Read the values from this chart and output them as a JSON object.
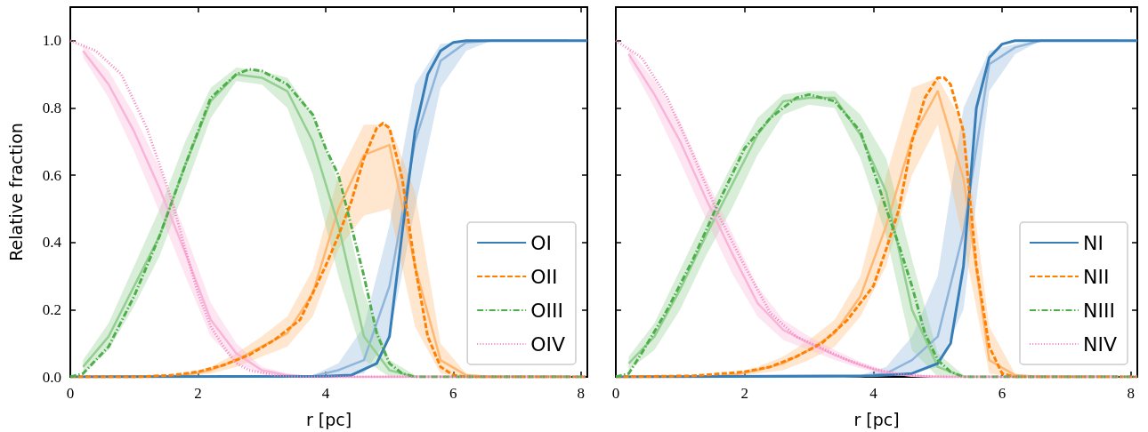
{
  "chart_data": [
    {
      "type": "line",
      "xlabel": "r [pc]",
      "ylabel": "Relative fraction",
      "xlim": [
        0,
        8.1
      ],
      "ylim": [
        0,
        1.1
      ],
      "xticks": [
        0,
        2,
        4,
        6,
        8
      ],
      "yticks": [
        {
          "value": 0,
          "label": "0.0"
        },
        {
          "value": 0.2,
          "label": "0.2"
        },
        {
          "value": 0.4,
          "label": "0.4"
        },
        {
          "value": 0.6,
          "label": "0.6"
        },
        {
          "value": 0.8,
          "label": "0.8"
        },
        {
          "value": 1,
          "label": "1.0"
        }
      ],
      "grid": false,
      "legend": "bottom right",
      "marker": "none",
      "series": [
        {
          "name": "OI",
          "color": "#377eb8",
          "line_style": "solid",
          "x": [
            0,
            4.0,
            4.4,
            4.8,
            5.0,
            5.2,
            5.4,
            5.6,
            5.8,
            6.0,
            6.2,
            8.1
          ],
          "values": [
            0,
            0.002,
            0.005,
            0.04,
            0.12,
            0.43,
            0.73,
            0.9,
            0.97,
            0.995,
            1.0,
            1.0
          ]
        },
        {
          "name": "OII",
          "color": "#ff7f00",
          "line_style": "dashed",
          "x": [
            0,
            1.0,
            1.6,
            2.0,
            2.4,
            2.8,
            3.2,
            3.6,
            4.0,
            4.2,
            4.4,
            4.6,
            4.8,
            4.9,
            5.0,
            5.2,
            5.4,
            5.6,
            5.8,
            6.0,
            6.2,
            8.1
          ],
          "values": [
            0,
            0,
            0.005,
            0.015,
            0.035,
            0.065,
            0.11,
            0.17,
            0.33,
            0.42,
            0.52,
            0.65,
            0.74,
            0.755,
            0.74,
            0.59,
            0.33,
            0.12,
            0.03,
            0.005,
            0,
            0
          ]
        },
        {
          "name": "OIII",
          "color": "#4daf4a",
          "line_style": "dashdot",
          "x": [
            0,
            0.2,
            0.6,
            1.0,
            1.4,
            1.8,
            2.2,
            2.6,
            2.8,
            3.0,
            3.4,
            3.8,
            4.0,
            4.2,
            4.4,
            4.6,
            4.8,
            5.0,
            5.2,
            5.4,
            8.1
          ],
          "values": [
            0,
            0.01,
            0.09,
            0.24,
            0.42,
            0.63,
            0.83,
            0.9,
            0.915,
            0.91,
            0.87,
            0.78,
            0.68,
            0.6,
            0.45,
            0.3,
            0.13,
            0.04,
            0.01,
            0,
            0
          ]
        },
        {
          "name": "OIV",
          "color": "#f781bf",
          "line_style": "dotted",
          "x": [
            0,
            0.4,
            0.8,
            1.2,
            1.6,
            1.8,
            2.0,
            2.2,
            2.4,
            2.6,
            2.8,
            3.2,
            3.6,
            8.1
          ],
          "values": [
            1.0,
            0.97,
            0.9,
            0.74,
            0.52,
            0.38,
            0.25,
            0.15,
            0.09,
            0.04,
            0.02,
            0.005,
            0,
            0
          ]
        },
        {
          "color": "#8fb5da",
          "line_style": "solid",
          "x": [
            0.2,
            0.6,
            1.0,
            1.4,
            1.8,
            2.2,
            2.6,
            3.0,
            3.4,
            3.8,
            4.2,
            4.6,
            5.0,
            5.4,
            5.8,
            6.2,
            6.6,
            7.0,
            7.4,
            7.8
          ],
          "values": [
            0,
            0,
            0,
            0,
            0,
            0,
            0,
            0,
            0,
            0.002,
            0.02,
            0.05,
            0.27,
            0.7,
            0.94,
            0.995,
            1,
            1,
            1,
            1
          ],
          "lower": [
            0,
            0,
            0,
            0,
            0,
            0,
            0,
            0,
            0,
            0,
            0.005,
            0.01,
            0.12,
            0.5,
            0.86,
            0.97,
            1,
            1,
            1,
            1
          ],
          "upper": [
            0,
            0,
            0,
            0,
            0,
            0,
            0,
            0,
            0,
            0.005,
            0.04,
            0.15,
            0.45,
            0.87,
            0.99,
            1,
            1,
            1,
            1,
            1
          ]
        },
        {
          "color": "#ffb872",
          "line_style": "solid",
          "x": [
            0.2,
            0.6,
            1.0,
            1.4,
            1.8,
            2.2,
            2.6,
            3.0,
            3.4,
            3.8,
            4.2,
            4.6,
            5.0,
            5.4,
            5.8,
            6.2,
            6.6,
            7.0,
            7.4,
            7.8
          ],
          "values": [
            0,
            0,
            0,
            0,
            0.005,
            0.02,
            0.05,
            0.09,
            0.13,
            0.25,
            0.5,
            0.66,
            0.69,
            0.33,
            0.05,
            0.005,
            0,
            0,
            0,
            0
          ],
          "lower": [
            0,
            0,
            0,
            0,
            0,
            0.01,
            0.03,
            0.06,
            0.09,
            0.18,
            0.38,
            0.48,
            0.5,
            0.15,
            0.01,
            0,
            0,
            0,
            0,
            0
          ],
          "upper": [
            0,
            0,
            0,
            0,
            0.01,
            0.03,
            0.07,
            0.12,
            0.18,
            0.32,
            0.6,
            0.75,
            0.75,
            0.55,
            0.1,
            0.01,
            0,
            0,
            0,
            0
          ]
        },
        {
          "color": "#93cf91",
          "line_style": "solid",
          "x": [
            0.2,
            0.6,
            1.0,
            1.4,
            1.8,
            2.2,
            2.6,
            3.0,
            3.4,
            3.8,
            4.2,
            4.6,
            5.0,
            5.4,
            5.8,
            6.2,
            6.6,
            7.0,
            7.4,
            7.8
          ],
          "values": [
            0.03,
            0.12,
            0.27,
            0.42,
            0.63,
            0.82,
            0.9,
            0.89,
            0.85,
            0.7,
            0.45,
            0.12,
            0.02,
            0,
            0,
            0,
            0,
            0,
            0,
            0
          ],
          "lower": [
            0.01,
            0.08,
            0.21,
            0.36,
            0.56,
            0.77,
            0.88,
            0.87,
            0.8,
            0.6,
            0.3,
            0.05,
            0,
            0,
            0,
            0,
            0,
            0,
            0,
            0
          ],
          "upper": [
            0.05,
            0.16,
            0.33,
            0.5,
            0.7,
            0.86,
            0.92,
            0.91,
            0.89,
            0.78,
            0.58,
            0.25,
            0.05,
            0.005,
            0,
            0,
            0,
            0,
            0,
            0
          ]
        },
        {
          "color": "#f9b5d9",
          "line_style": "solid",
          "x": [
            0.2,
            0.6,
            1.0,
            1.4,
            1.8,
            2.2,
            2.6,
            3.0,
            3.4,
            3.8,
            4.2,
            4.6,
            5.0,
            5.4,
            5.8,
            6.2,
            6.6,
            7.0,
            7.4,
            7.8
          ],
          "values": [
            0.97,
            0.87,
            0.73,
            0.56,
            0.37,
            0.17,
            0.07,
            0.02,
            0.005,
            0,
            0,
            0,
            0,
            0,
            0,
            0,
            0,
            0,
            0,
            0
          ],
          "lower": [
            0.95,
            0.83,
            0.67,
            0.49,
            0.3,
            0.12,
            0.04,
            0.01,
            0,
            0,
            0,
            0,
            0,
            0,
            0,
            0,
            0,
            0,
            0,
            0
          ],
          "upper": [
            0.99,
            0.91,
            0.78,
            0.62,
            0.43,
            0.22,
            0.1,
            0.03,
            0.01,
            0,
            0,
            0,
            0,
            0,
            0,
            0,
            0,
            0,
            0,
            0
          ]
        }
      ]
    },
    {
      "type": "line",
      "xlabel": "r [pc]",
      "xlim": [
        0,
        8.1
      ],
      "ylim": [
        0,
        1.1
      ],
      "xticks": [
        0,
        2,
        4,
        6,
        8
      ],
      "yticks": [
        {
          "value": 0,
          "label": null
        },
        {
          "value": 0.2,
          "label": null
        },
        {
          "value": 0.4,
          "label": null
        },
        {
          "value": 0.6,
          "label": null
        },
        {
          "value": 0.8,
          "label": null
        },
        {
          "value": 1,
          "label": null
        }
      ],
      "tick_labels": "x",
      "grid": false,
      "legend": "bottom right",
      "marker": "none",
      "series": [
        {
          "name": "NI",
          "color": "#377eb8",
          "line_style": "solid",
          "x": [
            0,
            4.0,
            4.6,
            5.0,
            5.2,
            5.4,
            5.6,
            5.8,
            6.0,
            6.2,
            8.1
          ],
          "values": [
            0,
            0.003,
            0.01,
            0.04,
            0.1,
            0.33,
            0.8,
            0.95,
            0.99,
            1.0,
            1.0
          ]
        },
        {
          "name": "NII",
          "color": "#ff7f00",
          "line_style": "dashed",
          "x": [
            0,
            1.2,
            2.0,
            2.4,
            2.8,
            3.2,
            3.6,
            4.0,
            4.2,
            4.4,
            4.6,
            4.8,
            5.0,
            5.1,
            5.2,
            5.4,
            5.6,
            5.8,
            6.0,
            6.2,
            8.1
          ],
          "values": [
            0,
            0.003,
            0.015,
            0.03,
            0.06,
            0.1,
            0.17,
            0.27,
            0.38,
            0.5,
            0.7,
            0.83,
            0.89,
            0.89,
            0.87,
            0.73,
            0.33,
            0.09,
            0.01,
            0,
            0
          ]
        },
        {
          "name": "NIII",
          "color": "#4daf4a",
          "line_style": "dashdot",
          "x": [
            0,
            0.2,
            0.4,
            0.8,
            1.2,
            1.6,
            2.0,
            2.4,
            2.8,
            3.0,
            3.4,
            3.8,
            4.2,
            4.4,
            4.6,
            4.8,
            5.0,
            5.2,
            5.4,
            8.1
          ],
          "values": [
            0,
            0.01,
            0.07,
            0.2,
            0.35,
            0.52,
            0.68,
            0.77,
            0.83,
            0.84,
            0.82,
            0.73,
            0.5,
            0.39,
            0.27,
            0.13,
            0.05,
            0.015,
            0,
            0
          ]
        },
        {
          "name": "NIV",
          "color": "#f781bf",
          "line_style": "dotted",
          "x": [
            0,
            0.4,
            0.8,
            1.2,
            1.6,
            2.0,
            2.4,
            2.8,
            3.2,
            3.6,
            4.0,
            4.4,
            4.8,
            5.2,
            8.1
          ],
          "values": [
            1.0,
            0.95,
            0.83,
            0.66,
            0.48,
            0.33,
            0.19,
            0.12,
            0.085,
            0.05,
            0.024,
            0.008,
            0.002,
            0,
            0
          ]
        },
        {
          "color": "#8fb5da",
          "line_style": "solid",
          "x": [
            0.2,
            0.6,
            1.0,
            1.4,
            1.8,
            2.2,
            2.6,
            3.0,
            3.4,
            3.8,
            4.2,
            4.6,
            5.0,
            5.4,
            5.8,
            6.2,
            6.6,
            7.0,
            7.4,
            7.8
          ],
          "values": [
            0,
            0,
            0,
            0,
            0,
            0,
            0,
            0,
            0,
            0.002,
            0.01,
            0.05,
            0.12,
            0.43,
            0.93,
            0.98,
            1,
            1,
            1,
            1
          ],
          "lower": [
            0,
            0,
            0,
            0,
            0,
            0,
            0,
            0,
            0,
            0,
            0.003,
            0.01,
            0.03,
            0.2,
            0.85,
            0.96,
            1,
            1,
            1,
            1
          ],
          "upper": [
            0,
            0,
            0,
            0,
            0,
            0,
            0,
            0,
            0,
            0.005,
            0.03,
            0.12,
            0.3,
            0.8,
            0.97,
            0.99,
            1,
            1,
            1,
            1
          ]
        },
        {
          "color": "#ffb872",
          "line_style": "solid",
          "x": [
            0.2,
            0.6,
            1.0,
            1.4,
            1.8,
            2.2,
            2.6,
            3.0,
            3.4,
            3.8,
            4.2,
            4.6,
            5.0,
            5.4,
            5.8,
            6.2,
            6.6,
            7.0,
            7.4,
            7.8
          ],
          "values": [
            0,
            0,
            0,
            0,
            0.005,
            0.02,
            0.04,
            0.08,
            0.13,
            0.24,
            0.45,
            0.71,
            0.85,
            0.59,
            0.05,
            0.005,
            0,
            0,
            0,
            0
          ],
          "lower": [
            0,
            0,
            0,
            0,
            0,
            0.01,
            0.02,
            0.05,
            0.09,
            0.18,
            0.33,
            0.6,
            0.75,
            0.4,
            0.01,
            0,
            0,
            0,
            0,
            0
          ],
          "upper": [
            0,
            0,
            0,
            0,
            0.01,
            0.03,
            0.06,
            0.11,
            0.17,
            0.3,
            0.6,
            0.86,
            0.89,
            0.75,
            0.15,
            0.01,
            0,
            0,
            0,
            0
          ]
        },
        {
          "color": "#93cf91",
          "line_style": "solid",
          "x": [
            0.2,
            0.6,
            1.0,
            1.4,
            1.8,
            2.2,
            2.6,
            3.0,
            3.4,
            3.8,
            4.2,
            4.6,
            5.0,
            5.4,
            5.8,
            6.2,
            6.6,
            7.0,
            7.4,
            7.8
          ],
          "values": [
            0.04,
            0.12,
            0.26,
            0.42,
            0.57,
            0.72,
            0.82,
            0.83,
            0.83,
            0.72,
            0.55,
            0.2,
            0.03,
            0,
            0,
            0,
            0,
            0,
            0,
            0
          ],
          "lower": [
            0.02,
            0.08,
            0.2,
            0.36,
            0.5,
            0.66,
            0.78,
            0.81,
            0.8,
            0.65,
            0.42,
            0.08,
            0,
            0,
            0,
            0,
            0,
            0,
            0,
            0
          ],
          "upper": [
            0.06,
            0.16,
            0.32,
            0.48,
            0.63,
            0.77,
            0.84,
            0.85,
            0.85,
            0.78,
            0.65,
            0.35,
            0.07,
            0.005,
            0,
            0,
            0,
            0,
            0,
            0
          ]
        },
        {
          "color": "#f9b5d9",
          "line_style": "solid",
          "x": [
            0.2,
            0.6,
            1.0,
            1.4,
            1.8,
            2.2,
            2.6,
            3.0,
            3.4,
            3.8,
            4.2,
            4.6,
            5.0,
            5.4,
            5.8,
            6.2,
            6.6,
            7.0,
            7.4,
            7.8
          ],
          "values": [
            0.96,
            0.84,
            0.7,
            0.53,
            0.37,
            0.22,
            0.14,
            0.1,
            0.065,
            0.035,
            0.012,
            0.003,
            0,
            0,
            0,
            0,
            0,
            0,
            0,
            0
          ],
          "lower": [
            0.94,
            0.8,
            0.64,
            0.47,
            0.31,
            0.18,
            0.11,
            0.08,
            0.05,
            0.025,
            0.007,
            0.001,
            0,
            0,
            0,
            0,
            0,
            0,
            0,
            0
          ],
          "upper": [
            0.98,
            0.88,
            0.76,
            0.59,
            0.43,
            0.27,
            0.17,
            0.12,
            0.08,
            0.045,
            0.018,
            0.006,
            0.001,
            0,
            0,
            0,
            0,
            0,
            0,
            0
          ]
        }
      ]
    }
  ]
}
